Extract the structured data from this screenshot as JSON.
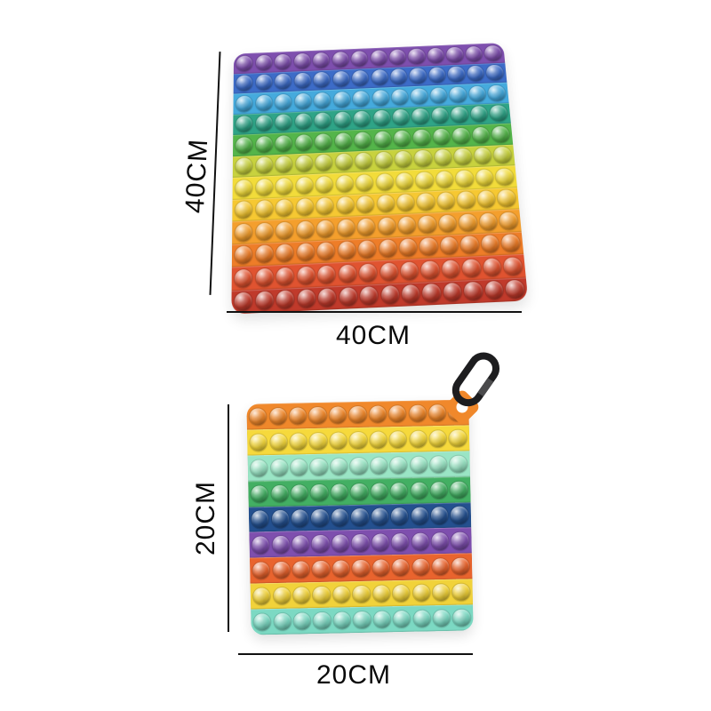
{
  "photo": {
    "background_color": "#ffffff"
  },
  "toys": [
    {
      "name": "rainbow-popit-40cm",
      "height_label": "40CM",
      "width_label": "40CM",
      "rows": 12,
      "bubbles_per_row": 14,
      "stripe_colors": [
        "#7e4fae",
        "#3d6cc8",
        "#45aadd",
        "#2fa487",
        "#54b54a",
        "#c8d23e",
        "#f2dc3a",
        "#f6c832",
        "#f49f2d",
        "#ee7d28",
        "#e05330",
        "#c03a2b"
      ]
    },
    {
      "name": "rainbow-popit-20cm",
      "height_label": "20CM",
      "width_label": "20CM",
      "rows": 9,
      "bubbles_per_row": 11,
      "stripe_colors": [
        "#f0882b",
        "#f6d93c",
        "#9ae5c5",
        "#43af63",
        "#24508f",
        "#7e4fae",
        "#e9642e",
        "#f1d23a",
        "#7cd9c3"
      ],
      "accessory": {
        "name": "carabiner-clip",
        "clip_color": "#1d1d1f",
        "tab_color": "#f0882b"
      }
    }
  ]
}
